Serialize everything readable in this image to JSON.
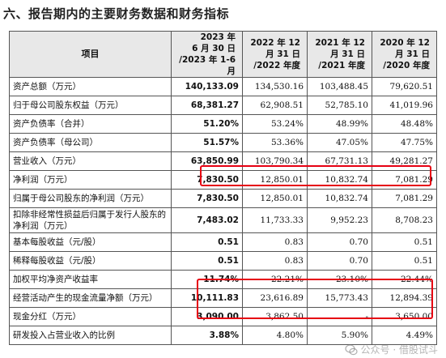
{
  "heading": "六、报告期内的主要财务数据和财务指标",
  "table": {
    "header": {
      "item": "项目",
      "col1": [
        "2023 年",
        "6 月 30 日",
        "/2023 年 1-6 月"
      ],
      "col2": [
        "2022 年 12",
        "月 31 日",
        "/2022 年度"
      ],
      "col3": [
        "2021 年 12",
        "月 31 日",
        "/2021 年度"
      ],
      "col4": [
        "2020 年 12",
        "月 31 日",
        "/2020 年度"
      ]
    },
    "rows": [
      {
        "label": "资产总额（万元）",
        "v2023": "140,133.09",
        "v2022": "134,530.16",
        "v2021": "103,488.45",
        "v2020": "79,620.51"
      },
      {
        "label": "归于母公司股东权益（万元）",
        "v2023": "68,381.27",
        "v2022": "62,908.51",
        "v2021": "52,785.10",
        "v2020": "41,019.96"
      },
      {
        "label": "资产负债率（合并）",
        "v2023": "51.20%",
        "v2022": "53.24%",
        "v2021": "48.99%",
        "v2020": "48.48%"
      },
      {
        "label": "资产负债率（母公司）",
        "v2023": "51.57%",
        "v2022": "53.36%",
        "v2021": "47.05%",
        "v2020": "47.75%"
      },
      {
        "label": "营业收入（万元）",
        "v2023": "63,850.99",
        "v2022": "103,790.34",
        "v2021": "67,731.13",
        "v2020": "49,281.27"
      },
      {
        "label": "净利润（万元）",
        "v2023": "7,830.50",
        "v2022": "12,850.01",
        "v2021": "10,832.74",
        "v2020": "7,081.29"
      },
      {
        "label": "归属于母公司股东的净利润（万元）",
        "v2023": "7,830.50",
        "v2022": "12,850.01",
        "v2021": "10,832.74",
        "v2020": "7,081.29"
      },
      {
        "label": "扣除非经常性损益后归属于发行人股东的净利润（万元）",
        "v2023": "7,483.02",
        "v2022": "11,733.33",
        "v2021": "9,952.23",
        "v2020": "8,708.23"
      },
      {
        "label": "基本每股收益（元/股）",
        "v2023": "0.51",
        "v2022": "0.83",
        "v2021": "0.70",
        "v2020": "0.51"
      },
      {
        "label": "稀释每股收益（元/股）",
        "v2023": "0.51",
        "v2022": "0.83",
        "v2021": "0.70",
        "v2020": "0.51"
      },
      {
        "label": "加权平均净资产收益率",
        "v2023": "11.74%",
        "v2022": "22.21%",
        "v2021": "23.10%",
        "v2020": "22.44%"
      },
      {
        "label": "经营活动产生的现金流量净额（万元）",
        "v2023": "10,111.83",
        "v2022": "23,616.89",
        "v2021": "15,773.43",
        "v2020": "12,894.39"
      },
      {
        "label": "现金分红（万元）",
        "v2023": "3,090.00",
        "v2022": "3,862.50",
        "v2021": "-",
        "v2020": "3,650.00"
      },
      {
        "label": "研发投入占营业收入的比例",
        "v2023": "3.88%",
        "v2022": "4.80%",
        "v2021": "5.90%",
        "v2020": "4.49%"
      }
    ]
  },
  "watermark": {
    "text": "公众号 · 借股试斗",
    "icon": "wechat-icon"
  },
  "highlight_color": "#e60012"
}
